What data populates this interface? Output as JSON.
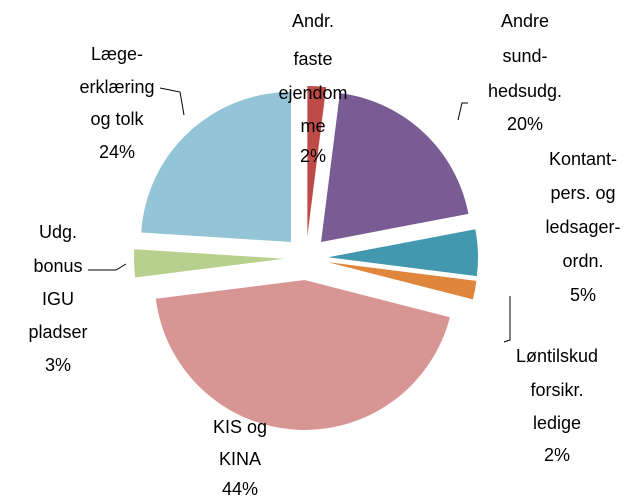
{
  "chart_data": {
    "type": "pie",
    "categories": [
      [
        "Andr.",
        "faste",
        "ejendom",
        "me"
      ],
      [
        "Andre",
        "sund-",
        "hedsudg."
      ],
      [
        "Kontant-",
        "pers. og",
        "ledsager-",
        "ordn."
      ],
      [
        "Løntilskud",
        "forsikr.",
        "ledige"
      ],
      [
        "KIS og",
        "KINA"
      ],
      [
        "Udg.",
        "bonus",
        "IGU",
        "pladser"
      ],
      [
        "Læge-",
        "erklæring",
        "og tolk"
      ]
    ],
    "values": [
      2,
      20,
      5,
      2,
      44,
      3,
      24
    ],
    "value_labels": [
      "2%",
      "20%",
      "5%",
      "2%",
      "44%",
      "3%",
      "24%"
    ],
    "colors": [
      "#be4b48",
      "#7a5c94",
      "#4298ae",
      "#e0853c",
      "#d79593",
      "#b7d08e",
      "#93c5d7"
    ]
  }
}
